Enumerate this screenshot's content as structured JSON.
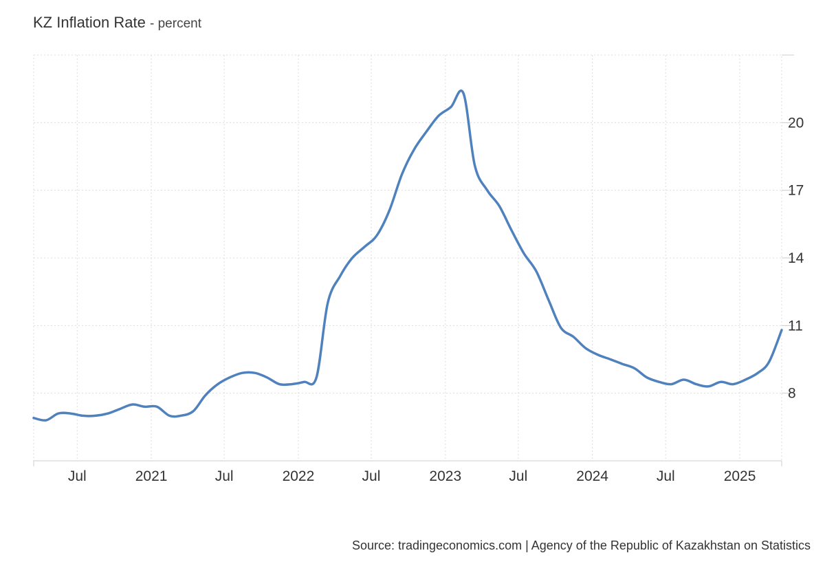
{
  "chart_data": {
    "type": "line",
    "title": "KZ Inflation Rate",
    "unit_label": "percent",
    "source": "Source: tradingeconomics.com | Agency of the Republic of Kazakhstan on Statistics",
    "series_color": "#4f81bd",
    "grid": true,
    "x_range": [
      "2020-03-15",
      "2025-04-15"
    ],
    "ylim": [
      5,
      23
    ],
    "y_ticks": [
      {
        "value": 20,
        "label": "20"
      },
      {
        "value": 17,
        "label": "17"
      },
      {
        "value": 14,
        "label": "14"
      },
      {
        "value": 11,
        "label": "11"
      },
      {
        "value": 8,
        "label": "8"
      }
    ],
    "x_ticks": [
      {
        "date": "2020-07-01",
        "label": "Jul"
      },
      {
        "date": "2021-01-01",
        "label": "2021"
      },
      {
        "date": "2021-07-01",
        "label": "Jul"
      },
      {
        "date": "2022-01-01",
        "label": "2022"
      },
      {
        "date": "2022-07-01",
        "label": "Jul"
      },
      {
        "date": "2023-01-01",
        "label": "2023"
      },
      {
        "date": "2023-07-01",
        "label": "Jul"
      },
      {
        "date": "2024-01-01",
        "label": "2024"
      },
      {
        "date": "2024-07-01",
        "label": "Jul"
      },
      {
        "date": "2025-01-01",
        "label": "2025"
      }
    ],
    "series": [
      {
        "x": [
          "2020-03-15",
          "2020-04-15",
          "2020-05-15",
          "2020-06-15",
          "2020-07-15",
          "2020-08-15",
          "2020-09-15",
          "2020-10-15",
          "2020-11-15",
          "2020-12-15",
          "2021-01-15",
          "2021-02-15",
          "2021-03-15",
          "2021-04-15",
          "2021-05-15",
          "2021-06-15",
          "2021-07-15",
          "2021-08-15",
          "2021-09-15",
          "2021-10-15",
          "2021-11-15",
          "2021-12-15",
          "2022-01-15",
          "2022-02-15",
          "2022-03-15",
          "2022-04-15",
          "2022-05-15",
          "2022-06-15",
          "2022-07-15",
          "2022-08-15",
          "2022-09-15",
          "2022-10-15",
          "2022-11-15",
          "2022-12-15",
          "2023-01-15",
          "2023-02-15",
          "2023-03-15",
          "2023-04-15",
          "2023-05-15",
          "2023-06-15",
          "2023-07-15",
          "2023-08-15",
          "2023-09-15",
          "2023-10-15",
          "2023-11-15",
          "2023-12-15",
          "2024-01-15",
          "2024-02-15",
          "2024-03-15",
          "2024-04-15",
          "2024-05-15",
          "2024-06-15",
          "2024-07-15",
          "2024-08-15",
          "2024-09-15",
          "2024-10-15",
          "2024-11-15",
          "2024-12-15",
          "2025-01-15",
          "2025-02-15",
          "2025-03-15",
          "2025-04-15"
        ],
        "values": [
          6.9,
          6.8,
          7.1,
          7.1,
          7.0,
          7.0,
          7.1,
          7.3,
          7.5,
          7.4,
          7.4,
          7.0,
          7.0,
          7.2,
          7.9,
          8.4,
          8.7,
          8.9,
          8.9,
          8.7,
          8.4,
          8.4,
          8.5,
          8.7,
          12.0,
          13.2,
          14.0,
          14.5,
          15.0,
          16.1,
          17.7,
          18.8,
          19.6,
          20.3,
          20.7,
          21.3,
          18.1,
          17.0,
          16.3,
          15.2,
          14.2,
          13.4,
          12.1,
          10.9,
          10.5,
          10.0,
          9.7,
          9.5,
          9.3,
          9.1,
          8.7,
          8.5,
          8.4,
          8.6,
          8.4,
          8.3,
          8.5,
          8.4,
          8.6,
          8.9,
          9.4,
          10.8
        ]
      }
    ]
  }
}
